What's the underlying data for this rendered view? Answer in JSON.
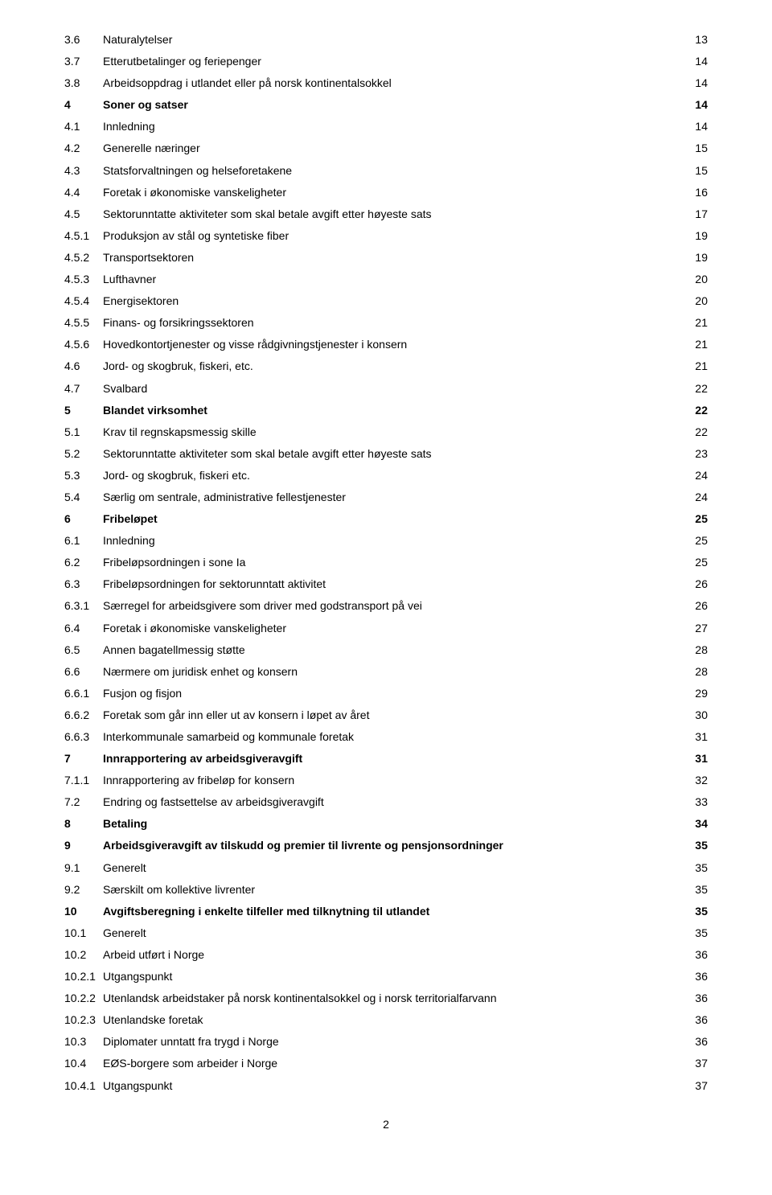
{
  "toc": [
    {
      "num": "3.6",
      "title": "Naturalytelser",
      "page": "13",
      "bold": false
    },
    {
      "num": "3.7",
      "title": "Etterutbetalinger og feriepenger",
      "page": "14",
      "bold": false
    },
    {
      "num": "3.8",
      "title": "Arbeidsoppdrag i utlandet eller på norsk kontinentalsokkel",
      "page": "14",
      "bold": false
    },
    {
      "num": "4",
      "title": "Soner og satser",
      "page": "14",
      "bold": true
    },
    {
      "num": "4.1",
      "title": "Innledning",
      "page": "14",
      "bold": false
    },
    {
      "num": "4.2",
      "title": "Generelle næringer",
      "page": "15",
      "bold": false
    },
    {
      "num": "4.3",
      "title": "Statsforvaltningen og helseforetakene",
      "page": "15",
      "bold": false
    },
    {
      "num": "4.4",
      "title": "Foretak i økonomiske vanskeligheter",
      "page": "16",
      "bold": false
    },
    {
      "num": "4.5",
      "title": "Sektorunntatte aktiviteter som skal betale avgift etter høyeste sats",
      "page": "17",
      "bold": false
    },
    {
      "num": "4.5.1",
      "title": "Produksjon av stål og syntetiske fiber",
      "page": "19",
      "bold": false
    },
    {
      "num": "4.5.2",
      "title": "Transportsektoren",
      "page": "19",
      "bold": false
    },
    {
      "num": "4.5.3",
      "title": "Lufthavner",
      "page": "20",
      "bold": false
    },
    {
      "num": "4.5.4",
      "title": "Energisektoren",
      "page": "20",
      "bold": false
    },
    {
      "num": "4.5.5",
      "title": "Finans- og forsikringssektoren",
      "page": "21",
      "bold": false
    },
    {
      "num": "4.5.6",
      "title": "Hovedkontortjenester og visse rådgivningstjenester i konsern",
      "page": "21",
      "bold": false
    },
    {
      "num": "4.6",
      "title": "Jord- og skogbruk, fiskeri, etc.",
      "page": "21",
      "bold": false
    },
    {
      "num": "4.7",
      "title": "Svalbard",
      "page": "22",
      "bold": false
    },
    {
      "num": "5",
      "title": "Blandet virksomhet",
      "page": "22",
      "bold": true
    },
    {
      "num": "5.1",
      "title": "Krav til regnskapsmessig skille",
      "page": "22",
      "bold": false
    },
    {
      "num": "5.2",
      "title": "Sektorunntatte aktiviteter som skal betale avgift etter høyeste sats",
      "page": "23",
      "bold": false
    },
    {
      "num": "5.3",
      "title": "Jord- og skogbruk, fiskeri etc.",
      "page": "24",
      "bold": false
    },
    {
      "num": "5.4",
      "title": "Særlig om sentrale, administrative fellestjenester",
      "page": "24",
      "bold": false
    },
    {
      "num": "6",
      "title": "Fribeløpet",
      "page": "25",
      "bold": true
    },
    {
      "num": "6.1",
      "title": "Innledning",
      "page": "25",
      "bold": false
    },
    {
      "num": "6.2",
      "title": "Fribeløpsordningen i sone Ia",
      "page": "25",
      "bold": false
    },
    {
      "num": "6.3",
      "title": "Fribeløpsordningen for sektorunntatt aktivitet",
      "page": "26",
      "bold": false
    },
    {
      "num": "6.3.1",
      "title": "Særregel for arbeidsgivere som driver med godstransport på vei",
      "page": "26",
      "bold": false
    },
    {
      "num": "6.4",
      "title": "Foretak i økonomiske vanskeligheter",
      "page": "27",
      "bold": false
    },
    {
      "num": "6.5",
      "title": "Annen bagatellmessig støtte",
      "page": "28",
      "bold": false
    },
    {
      "num": "6.6",
      "title": "Nærmere om juridisk enhet og konsern",
      "page": "28",
      "bold": false
    },
    {
      "num": "6.6.1",
      "title": "Fusjon og fisjon",
      "page": "29",
      "bold": false
    },
    {
      "num": "6.6.2",
      "title": "Foretak som går inn eller ut av konsern i løpet av året",
      "page": "30",
      "bold": false
    },
    {
      "num": "6.6.3",
      "title": "Interkommunale samarbeid og kommunale foretak",
      "page": "31",
      "bold": false
    },
    {
      "num": "7",
      "title": "Innrapportering av arbeidsgiveravgift",
      "page": "31",
      "bold": true
    },
    {
      "num": "7.1.1",
      "title": "Innrapportering av fribeløp for konsern",
      "page": "32",
      "bold": false
    },
    {
      "num": "7.2",
      "title": "Endring og fastsettelse av arbeidsgiveravgift",
      "page": "33",
      "bold": false
    },
    {
      "num": "8",
      "title": "Betaling",
      "page": "34",
      "bold": true
    },
    {
      "num": "9",
      "title": "Arbeidsgiveravgift av tilskudd og premier til livrente og pensjonsordninger",
      "page": "35",
      "bold": true
    },
    {
      "num": "9.1",
      "title": "Generelt",
      "page": "35",
      "bold": false
    },
    {
      "num": "9.2",
      "title": "Særskilt om kollektive livrenter",
      "page": "35",
      "bold": false
    },
    {
      "num": "10",
      "title": "Avgiftsberegning i enkelte tilfeller med tilknytning til utlandet",
      "page": "35",
      "bold": true
    },
    {
      "num": "10.1",
      "title": "Generelt",
      "page": "35",
      "bold": false
    },
    {
      "num": "10.2",
      "title": "Arbeid utført i Norge",
      "page": "36",
      "bold": false
    },
    {
      "num": "10.2.1",
      "title": "Utgangspunkt",
      "page": "36",
      "bold": false
    },
    {
      "num": "10.2.2",
      "title": "Utenlandsk arbeidstaker på norsk kontinentalsokkel og i norsk territorialfarvann",
      "page": "36",
      "bold": false
    },
    {
      "num": "10.2.3",
      "title": "Utenlandske foretak",
      "page": "36",
      "bold": false
    },
    {
      "num": "10.3",
      "title": "Diplomater unntatt fra trygd i Norge",
      "page": "36",
      "bold": false
    },
    {
      "num": "10.4",
      "title": "EØS-borgere som arbeider i Norge",
      "page": "37",
      "bold": false
    },
    {
      "num": "10.4.1",
      "title": "Utgangspunkt",
      "page": "37",
      "bold": false
    }
  ],
  "page_number": "2",
  "colors": {
    "text": "#000000",
    "background": "#ffffff"
  },
  "fonts": {
    "family": "Arial",
    "size_pt": 11
  }
}
